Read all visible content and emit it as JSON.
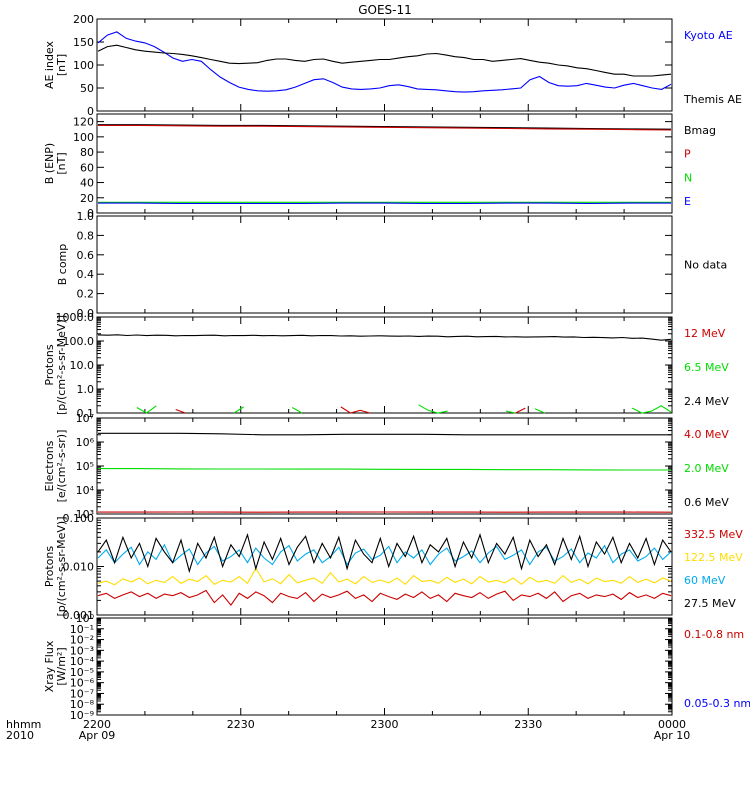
{
  "title": "GOES-11",
  "colors": {
    "black": "#000000",
    "blue": "#0000ff",
    "red": "#cc0000",
    "green": "#00dd00",
    "cyan": "#00aaee",
    "yellow": "#ffdd00"
  },
  "xaxis": {
    "corner_top": "hhmm",
    "corner_bottom": "2010",
    "ticks": [
      {
        "label": "2200",
        "sub": "Apr 09"
      },
      {
        "label": "2230",
        "sub": ""
      },
      {
        "label": "2300",
        "sub": ""
      },
      {
        "label": "2330",
        "sub": ""
      },
      {
        "label": "0000",
        "sub": "Apr 10"
      }
    ]
  },
  "chart_data": [
    {
      "type": "line",
      "id": "ae",
      "ylabel": [
        "AE index",
        "[nT]"
      ],
      "scale": "linear",
      "ylim": [
        0,
        200
      ],
      "yticks": [
        "0",
        "50",
        "100",
        "150",
        "200"
      ],
      "series": [
        {
          "name": "Kyoto AE",
          "color": "blue",
          "values": [
            148,
            165,
            172,
            158,
            152,
            148,
            140,
            128,
            115,
            108,
            112,
            108,
            90,
            74,
            62,
            52,
            47,
            44,
            43,
            44,
            46,
            52,
            60,
            68,
            70,
            62,
            52,
            48,
            47,
            48,
            50,
            55,
            57,
            53,
            48,
            47,
            46,
            44,
            42,
            41,
            42,
            44,
            45,
            46,
            48,
            50,
            68,
            75,
            62,
            55,
            54,
            55,
            60,
            56,
            52,
            50,
            56,
            60,
            55,
            50,
            47,
            58
          ]
        },
        {
          "name": "Themis AE",
          "color": "black",
          "values": [
            130,
            140,
            143,
            138,
            133,
            130,
            128,
            126,
            125,
            123,
            120,
            116,
            112,
            108,
            104,
            103,
            104,
            105,
            110,
            113,
            113,
            110,
            108,
            112,
            113,
            108,
            104,
            106,
            108,
            110,
            112,
            112,
            115,
            118,
            120,
            124,
            125,
            122,
            118,
            116,
            112,
            112,
            108,
            110,
            112,
            114,
            110,
            106,
            104,
            100,
            98,
            94,
            92,
            88,
            84,
            80,
            80,
            76,
            76,
            76,
            78,
            80
          ]
        }
      ]
    },
    {
      "type": "line",
      "id": "b",
      "ylabel": [
        "B (ENP)",
        "[nT]"
      ],
      "scale": "linear",
      "ylim": [
        0,
        130
      ],
      "yticks": [
        "0",
        "20",
        "40",
        "60",
        "80",
        "100",
        "120"
      ],
      "series": [
        {
          "name": "Bmag",
          "color": "black",
          "values": [
            116,
            116,
            115.5,
            115,
            115,
            114.5,
            114,
            113.5,
            113,
            112.5,
            112,
            111.5,
            111,
            110.5,
            110
          ]
        },
        {
          "name": "P",
          "color": "red",
          "values": [
            115,
            115,
            114.5,
            114,
            114,
            113.5,
            113,
            112.5,
            112,
            111.5,
            111,
            110.5,
            110,
            109.5,
            109
          ]
        },
        {
          "name": "N",
          "color": "green",
          "values": [
            14,
            14,
            14,
            14,
            14,
            14,
            14,
            14,
            14,
            14,
            14,
            14,
            14,
            14,
            14
          ]
        },
        {
          "name": "E",
          "color": "blue",
          "values": [
            13,
            13,
            12.5,
            12.5,
            12.5,
            12.5,
            13,
            13,
            12.5,
            12.5,
            13,
            13,
            12.5,
            13,
            13
          ]
        }
      ]
    },
    {
      "type": "line",
      "id": "bcomp",
      "ylabel": [
        "B comp"
      ],
      "scale": "linear",
      "ylim": [
        0,
        1
      ],
      "yticks": [
        "0.0",
        "0.2",
        "0.4",
        "0.6",
        "0.8",
        "1.0"
      ],
      "note": "No data",
      "series": []
    },
    {
      "type": "line",
      "id": "protons",
      "ylabel": [
        "Protons",
        "[p/(cm²-s-sr-MeV)]"
      ],
      "scale": "log",
      "ylim": [
        0.1,
        1000
      ],
      "yticks": [
        "0.1",
        "1.0",
        "10.0",
        "100.0",
        "1000.0"
      ],
      "series": [
        {
          "name": "12 MeV",
          "color": "red",
          "values": [
            null,
            null,
            null,
            null,
            null,
            null,
            null,
            null,
            0.14,
            0.1,
            null,
            null,
            null,
            null,
            null,
            null,
            null,
            null,
            null,
            null,
            null,
            0.13,
            null,
            0.1,
            null,
            0.18,
            0.1,
            0.13,
            0.1,
            null,
            null,
            null,
            null,
            null,
            null,
            null,
            null,
            null,
            null,
            null,
            null,
            null,
            null,
            0.1,
            0.16,
            null,
            null,
            null,
            null,
            null,
            null,
            null,
            null,
            null,
            null,
            null,
            null,
            null,
            null,
            null
          ]
        },
        {
          "name": "6.5 MeV",
          "color": "green",
          "values": [
            null,
            0.2,
            null,
            null,
            0.17,
            0.1,
            0.2,
            null,
            null,
            null,
            null,
            0.22,
            null,
            null,
            0.1,
            0.18,
            null,
            null,
            null,
            null,
            0.17,
            0.1,
            null,
            null,
            null,
            null,
            0.13,
            null,
            null,
            null,
            null,
            0.16,
            null,
            0.22,
            0.13,
            0.1,
            0.12,
            null,
            null,
            0.13,
            null,
            null,
            0.12,
            0.1,
            null,
            0.15,
            0.1,
            null,
            null,
            null,
            0.13,
            null,
            null,
            0.1,
            null,
            0.16,
            0.1,
            0.12,
            0.2,
            0.11
          ]
        },
        {
          "name": "2.4 MeV",
          "color": "black",
          "values": [
            180,
            175,
            182,
            170,
            178,
            168,
            175,
            172,
            165,
            170,
            168,
            172,
            175,
            165,
            170,
            168,
            172,
            166,
            170,
            165,
            168,
            172,
            165,
            170,
            168,
            162,
            165,
            158,
            162,
            165,
            160,
            158,
            162,
            155,
            160,
            158,
            150,
            155,
            158,
            150,
            152,
            155,
            148,
            150,
            145,
            148,
            150,
            152,
            145,
            148,
            140,
            142,
            138,
            135,
            140,
            130,
            132,
            120,
            108,
            118
          ]
        }
      ]
    },
    {
      "type": "line",
      "id": "electrons",
      "ylabel": [
        "Electrons",
        "[e/(cm²-s-sr)]"
      ],
      "scale": "log",
      "ylim": [
        1000,
        10000000
      ],
      "yticks": [
        "10³",
        "10⁴",
        "10⁵",
        "10⁶",
        "10⁷"
      ],
      "series": [
        {
          "name": "4.0 MeV",
          "color": "red",
          "values": [
            1200,
            1200,
            1210,
            1200,
            1190,
            1200,
            1200,
            1210,
            1200,
            1200,
            1190,
            1200,
            1200,
            1200,
            1190
          ]
        },
        {
          "name": "2.0 MeV",
          "color": "green",
          "values": [
            78000,
            78000,
            76000,
            75000,
            75000,
            74000,
            74000,
            73000,
            72000,
            72000,
            70000,
            70000,
            69000,
            68000,
            68000
          ]
        },
        {
          "name": "0.6 MeV",
          "color": "black",
          "values": [
            2300000,
            2300000,
            2300000,
            2200000,
            2000000,
            2000000,
            2100000,
            2100000,
            2100000,
            2000000,
            2000000,
            2000000,
            2000000,
            2000000,
            2000000
          ]
        }
      ]
    },
    {
      "type": "line",
      "id": "hiprotons",
      "ylabel": [
        "Protons",
        "[p/(cm²-s-sr-MeV)]"
      ],
      "scale": "log",
      "ylim": [
        0.001,
        0.1
      ],
      "yticks": [
        "0.001",
        "0.010",
        "0.100"
      ],
      "series": [
        {
          "name": "332.5 MeV",
          "color": "red",
          "values": [
            0.0025,
            0.0028,
            0.0022,
            0.0026,
            0.003,
            0.0024,
            0.0028,
            0.0022,
            0.0027,
            0.0025,
            0.0029,
            0.0023,
            0.0026,
            0.0032,
            0.0018,
            0.0026,
            0.0016,
            0.0028,
            0.0022,
            0.003,
            0.0025,
            0.0018,
            0.0028,
            0.0024,
            0.0022,
            0.0029,
            0.0019,
            0.0027,
            0.0023,
            0.0026,
            0.0031,
            0.0022,
            0.0026,
            0.0019,
            0.0028,
            0.0024,
            0.0021,
            0.0027,
            0.0023,
            0.003,
            0.0022,
            0.0026,
            0.0019,
            0.0028,
            0.0025,
            0.0023,
            0.0029,
            0.0022,
            0.0027,
            0.0031,
            0.002,
            0.0026,
            0.0024,
            0.0028,
            0.0022,
            0.003,
            0.0019,
            0.0025,
            0.0028,
            0.0022,
            0.0026,
            0.0024,
            0.0027,
            0.0021,
            0.0029,
            0.0023,
            0.0026,
            0.0022,
            0.0028,
            0.0025
          ]
        },
        {
          "name": "122.5 MeV",
          "color": "yellow",
          "values": [
            0.0045,
            0.005,
            0.0042,
            0.0056,
            0.0048,
            0.0058,
            0.0044,
            0.0052,
            0.0047,
            0.0062,
            0.0045,
            0.0055,
            0.0049,
            0.0065,
            0.0043,
            0.0052,
            0.0048,
            0.0062,
            0.0045,
            0.0092,
            0.0048,
            0.0056,
            0.0044,
            0.0068,
            0.0046,
            0.0052,
            0.0058,
            0.0045,
            0.0075,
            0.0048,
            0.0055,
            0.0044,
            0.0062,
            0.0047,
            0.0053,
            0.0046,
            0.0058,
            0.0043,
            0.0065,
            0.0049,
            0.0052,
            0.0045,
            0.006,
            0.0047,
            0.0055,
            0.0044,
            0.0062,
            0.0048,
            0.0052,
            0.0046,
            0.0058,
            0.0043,
            0.006,
            0.0048,
            0.0052,
            0.0045,
            0.0065,
            0.0047,
            0.0055,
            0.0044,
            0.0058,
            0.0049,
            0.0052,
            0.0045,
            0.0062,
            0.0047,
            0.0055,
            0.0046,
            0.0058,
            0.005
          ]
        },
        {
          "name": "60 MeV",
          "color": "cyan",
          "values": [
            0.015,
            0.022,
            0.012,
            0.018,
            0.025,
            0.011,
            0.02,
            0.014,
            0.028,
            0.012,
            0.017,
            0.023,
            0.011,
            0.019,
            0.026,
            0.013,
            0.016,
            0.022,
            0.012,
            0.024,
            0.015,
            0.011,
            0.02,
            0.027,
            0.013,
            0.018,
            0.022,
            0.012,
            0.016,
            0.025,
            0.011,
            0.019,
            0.023,
            0.014,
            0.017,
            0.026,
            0.012,
            0.02,
            0.015,
            0.022,
            0.011,
            0.018,
            0.024,
            0.013,
            0.016,
            0.021,
            0.012,
            0.019,
            0.026,
            0.014,
            0.017,
            0.022,
            0.011,
            0.02,
            0.025,
            0.013,
            0.016,
            0.023,
            0.012,
            0.019,
            0.015,
            0.027,
            0.012,
            0.018,
            0.022,
            0.013,
            0.016,
            0.024,
            0.014,
            0.02
          ]
        },
        {
          "name": "27.5 MeV",
          "color": "black",
          "values": [
            0.02,
            0.035,
            0.012,
            0.04,
            0.015,
            0.03,
            0.01,
            0.038,
            0.02,
            0.012,
            0.035,
            0.008,
            0.03,
            0.015,
            0.04,
            0.01,
            0.028,
            0.016,
            0.045,
            0.009,
            0.032,
            0.014,
            0.038,
            0.011,
            0.025,
            0.042,
            0.012,
            0.03,
            0.015,
            0.04,
            0.009,
            0.035,
            0.018,
            0.012,
            0.038,
            0.01,
            0.03,
            0.016,
            0.042,
            0.012,
            0.028,
            0.02,
            0.038,
            0.01,
            0.032,
            0.015,
            0.045,
            0.012,
            0.03,
            0.018,
            0.04,
            0.009,
            0.035,
            0.016,
            0.028,
            0.011,
            0.038,
            0.014,
            0.042,
            0.01,
            0.032,
            0.018,
            0.04,
            0.012,
            0.03,
            0.015,
            0.038,
            0.011,
            0.035,
            0.02
          ]
        }
      ]
    },
    {
      "type": "line",
      "id": "xray",
      "ylabel": [
        "Xray Flux",
        "[W/m²]"
      ],
      "scale": "log",
      "ylim": [
        1e-09,
        1
      ],
      "yticks": [
        "10⁻⁹",
        "10⁻⁸",
        "10⁻⁷",
        "10⁻⁶",
        "10⁻⁵",
        "10⁻⁴",
        "10⁻³",
        "10⁻²",
        "10⁻¹",
        "10⁰"
      ],
      "series": [
        {
          "name": "0.1-0.8 nm",
          "color": "red",
          "values": []
        },
        {
          "name": "0.05-0.3 nm",
          "color": "blue",
          "values": []
        }
      ]
    }
  ]
}
